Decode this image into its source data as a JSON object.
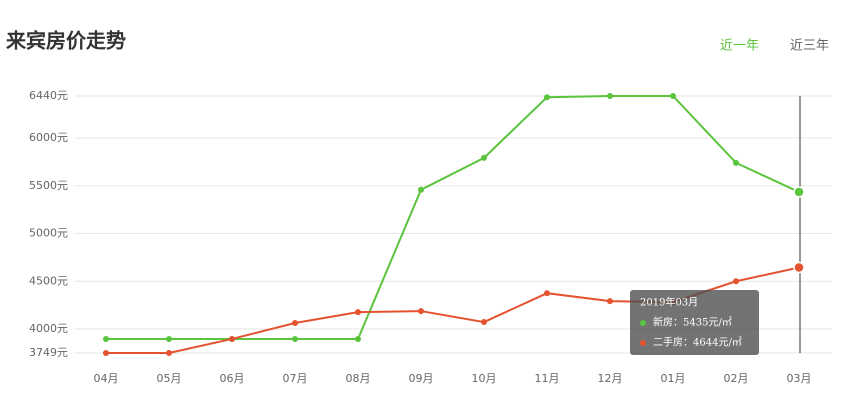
{
  "header": {
    "title": "来宾房价走势",
    "tabs": [
      "近一年",
      "近三年"
    ]
  },
  "chart_data": {
    "type": "line",
    "categories": [
      "04月",
      "05月",
      "06月",
      "07月",
      "08月",
      "09月",
      "10月",
      "11月",
      "12月",
      "01月",
      "02月",
      "03月"
    ],
    "series": [
      {
        "color": "#5ac43c",
        "values": [
          3896,
          3896,
          3896,
          3896,
          3896,
          5458,
          5792,
          6427,
          6440,
          6440,
          5740,
          5435
        ]
      },
      {
        "color": "#e4522f",
        "values": [
          3749,
          3749,
          3896,
          4063,
          4177,
          4188,
          4073,
          4375,
          4292,
          4281,
          4500,
          4644
        ]
      }
    ],
    "ylim": [
      3749,
      6440
    ],
    "yticks": [
      {
        "value": 3749,
        "label": "3749元"
      },
      {
        "value": 4000,
        "label": "4000元"
      },
      {
        "value": 4500,
        "label": "4500元"
      },
      {
        "value": 5000,
        "label": "5000元"
      },
      {
        "value": 5500,
        "label": "5500元"
      },
      {
        "value": 6000,
        "label": "6000元"
      },
      {
        "value": 6440,
        "label": "6440元"
      }
    ],
    "grid": true,
    "tooltip": {
      "title": "2019年03月",
      "rows": [
        "新房：5435元/㎡",
        "二手房：4644元/㎡"
      ]
    }
  }
}
